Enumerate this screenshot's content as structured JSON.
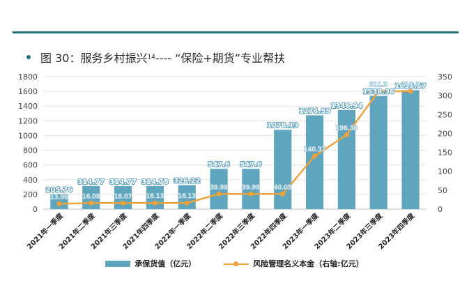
{
  "header": {
    "title_prefix": "图 30：服务乡村振兴",
    "title_sup": "14",
    "title_suffix": " ---- “保险+期货”专业帮扶"
  },
  "chart_data": {
    "type": "bar+line",
    "categories": [
      "2021年一季度",
      "2021年二季度",
      "2021年三季度",
      "2021年四季度",
      "2022年一季度",
      "2022年二季度",
      "2022年三季度",
      "2022年四季度",
      "2023年一季度",
      "2023年二季度",
      "2023年三季度",
      "2023年四季度"
    ],
    "series": [
      {
        "name": "承保货值（亿元）",
        "type": "bar",
        "axis": "left",
        "color": "#5fa5bd",
        "values": [
          205.76,
          314.77,
          314.77,
          314.78,
          326.22,
          547.6,
          547.6,
          1078.13,
          1274.59,
          1346.94,
          1538.36,
          1616.57
        ],
        "labels": [
          "205.76",
          "314.77",
          "314.77",
          "314.78",
          "326.22",
          "547.6",
          "547.6",
          "1078.13",
          "1274.59",
          "1346.94",
          "1538.36",
          "1616.57"
        ]
      },
      {
        "name": "风险管理名义本金（右轴:亿元）",
        "type": "line",
        "axis": "right",
        "color": "#f0a23a",
        "values": [
          13.96,
          16.08,
          16.07,
          16.13,
          16.13,
          39.99,
          39.99,
          40.05,
          140.37,
          196.38,
          311.3,
          311.3
        ],
        "labels": [
          "13.96",
          "16.08",
          "16.07",
          "16.13",
          "16.13",
          "39.99",
          "39.99",
          "40.05",
          "140.37",
          "196.38",
          "311.3",
          "311.3"
        ]
      }
    ],
    "y_left": {
      "min": 0,
      "max": 1800,
      "ticks": [
        "0",
        "200",
        "400",
        "600",
        "800",
        "1000",
        "1200",
        "1400",
        "1600",
        "1800"
      ]
    },
    "y_right": {
      "min": 0,
      "max": 350,
      "ticks": [
        "0",
        "50",
        "100",
        "150",
        "200",
        "250",
        "300",
        "350"
      ]
    },
    "grid": true,
    "legend_position": "bottom"
  },
  "legend": {
    "bar_label": "承保货值（亿元）",
    "line_label": "风险管理名义本金（右轴:亿元）"
  }
}
